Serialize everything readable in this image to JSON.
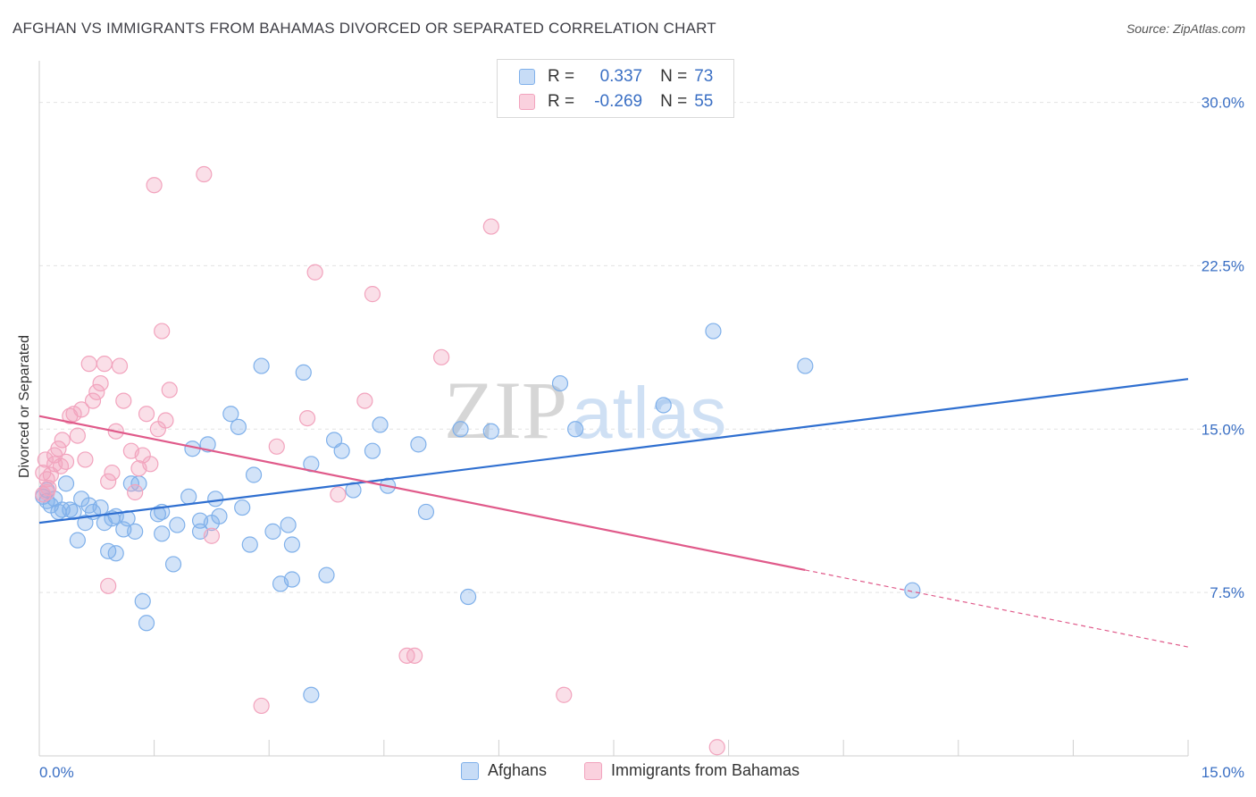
{
  "header": {
    "title": "AFGHAN VS IMMIGRANTS FROM BAHAMAS DIVORCED OR SEPARATED CORRELATION CHART",
    "source": "Source: ZipAtlas.com"
  },
  "watermark": {
    "zip": "ZIP",
    "atlas": "atlas"
  },
  "legend_top": {
    "rows": [
      {
        "r_label": "R =",
        "r_value": "0.337",
        "n_label": "N =",
        "n_value": "73",
        "color": "#7fb0ea"
      },
      {
        "r_label": "R =",
        "r_value": "-0.269",
        "n_label": "N =",
        "n_value": "55",
        "color": "#f2a3bd"
      }
    ]
  },
  "legend_bottom": {
    "items": [
      {
        "label": "Afghans",
        "color": "#7fb0ea"
      },
      {
        "label": "Immigrants from Bahamas",
        "color": "#f2a3bd"
      }
    ]
  },
  "chart_data": {
    "type": "scatter",
    "title": "AFGHAN VS IMMIGRANTS FROM BAHAMAS DIVORCED OR SEPARATED CORRELATION CHART",
    "xlabel": "",
    "ylabel": "Divorced or Separated",
    "xlim": [
      0,
      15
    ],
    "ylim": [
      0,
      31.5
    ],
    "x_tick_labels": [
      {
        "value": 0,
        "label": "0.0%"
      },
      {
        "value": 15,
        "label": "15.0%"
      }
    ],
    "y_tick_labels": [
      {
        "value": 7.5,
        "label": "7.5%"
      },
      {
        "value": 15,
        "label": "15.0%"
      },
      {
        "value": 22.5,
        "label": "22.5%"
      },
      {
        "value": 30,
        "label": "30.0%"
      }
    ],
    "grid": true,
    "series": [
      {
        "name": "Afghans",
        "color": "#7fb0ea",
        "line_color": "#2f6fd0",
        "trend": {
          "x0": 0,
          "y0": 10.7,
          "x1": 15,
          "y1": 17.3,
          "solid_until": 15
        },
        "points": [
          [
            0.1,
            12.2
          ],
          [
            0.1,
            11.7
          ],
          [
            0.2,
            11.8
          ],
          [
            0.25,
            11.2
          ],
          [
            0.3,
            11.3
          ],
          [
            0.35,
            12.5
          ],
          [
            0.4,
            11.3
          ],
          [
            0.45,
            11.2
          ],
          [
            0.55,
            11.8
          ],
          [
            0.6,
            10.7
          ],
          [
            0.65,
            11.5
          ],
          [
            0.7,
            11.2
          ],
          [
            0.8,
            11.4
          ],
          [
            0.85,
            10.7
          ],
          [
            0.9,
            9.4
          ],
          [
            1.0,
            11.0
          ],
          [
            1.0,
            9.3
          ],
          [
            1.1,
            10.4
          ],
          [
            1.15,
            10.9
          ],
          [
            1.2,
            12.5
          ],
          [
            1.3,
            12.5
          ],
          [
            1.35,
            7.1
          ],
          [
            1.4,
            6.1
          ],
          [
            1.6,
            10.2
          ],
          [
            1.8,
            10.6
          ],
          [
            1.95,
            11.9
          ],
          [
            2.0,
            14.1
          ],
          [
            2.1,
            10.8
          ],
          [
            2.2,
            14.3
          ],
          [
            2.3,
            11.8
          ],
          [
            2.35,
            11.0
          ],
          [
            2.5,
            15.7
          ],
          [
            2.6,
            15.1
          ],
          [
            2.75,
            9.7
          ],
          [
            2.8,
            12.9
          ],
          [
            2.9,
            17.9
          ],
          [
            3.05,
            10.3
          ],
          [
            3.15,
            7.9
          ],
          [
            3.25,
            10.6
          ],
          [
            3.3,
            9.7
          ],
          [
            3.45,
            17.6
          ],
          [
            3.55,
            13.4
          ],
          [
            3.75,
            8.3
          ],
          [
            3.85,
            14.5
          ],
          [
            3.95,
            14.0
          ],
          [
            4.1,
            12.2
          ],
          [
            4.35,
            14.0
          ],
          [
            4.45,
            15.2
          ],
          [
            4.55,
            12.4
          ],
          [
            4.95,
            14.3
          ],
          [
            5.05,
            11.2
          ],
          [
            5.5,
            15.0
          ],
          [
            5.6,
            7.3
          ],
          [
            5.9,
            14.9
          ],
          [
            3.3,
            8.1
          ],
          [
            3.55,
            2.8
          ],
          [
            1.75,
            8.8
          ],
          [
            2.1,
            10.3
          ],
          [
            2.25,
            10.7
          ],
          [
            6.8,
            17.1
          ],
          [
            7.0,
            15.0
          ],
          [
            8.15,
            16.1
          ],
          [
            8.8,
            19.5
          ],
          [
            10.0,
            17.9
          ],
          [
            11.4,
            7.6
          ],
          [
            0.15,
            11.5
          ],
          [
            0.05,
            11.9
          ],
          [
            1.55,
            11.1
          ],
          [
            2.65,
            11.4
          ],
          [
            1.6,
            11.2
          ],
          [
            0.95,
            10.9
          ],
          [
            0.5,
            9.9
          ],
          [
            1.25,
            10.3
          ]
        ]
      },
      {
        "name": "Immigrants from Bahamas",
        "color": "#f2a3bd",
        "line_color": "#e05a8a",
        "trend": {
          "x0": 0,
          "y0": 15.6,
          "x1": 15,
          "y1": 5.0,
          "solid_until": 10.0
        },
        "points": [
          [
            0.05,
            13.0
          ],
          [
            0.08,
            13.6
          ],
          [
            0.1,
            12.7
          ],
          [
            0.12,
            12.3
          ],
          [
            0.2,
            13.8
          ],
          [
            0.25,
            14.1
          ],
          [
            0.3,
            14.5
          ],
          [
            0.35,
            13.5
          ],
          [
            0.4,
            15.6
          ],
          [
            0.45,
            15.7
          ],
          [
            0.5,
            14.7
          ],
          [
            0.55,
            15.9
          ],
          [
            0.6,
            13.6
          ],
          [
            0.65,
            18.0
          ],
          [
            0.7,
            16.3
          ],
          [
            0.75,
            16.7
          ],
          [
            0.8,
            17.1
          ],
          [
            0.85,
            18.0
          ],
          [
            0.9,
            12.6
          ],
          [
            0.95,
            13.0
          ],
          [
            1.0,
            14.9
          ],
          [
            1.05,
            17.9
          ],
          [
            1.1,
            16.3
          ],
          [
            1.2,
            14.0
          ],
          [
            1.25,
            12.1
          ],
          [
            1.3,
            13.2
          ],
          [
            1.35,
            13.8
          ],
          [
            1.4,
            15.7
          ],
          [
            1.45,
            13.4
          ],
          [
            1.5,
            26.2
          ],
          [
            1.55,
            15.0
          ],
          [
            1.6,
            19.5
          ],
          [
            1.65,
            15.4
          ],
          [
            1.7,
            16.8
          ],
          [
            2.15,
            26.7
          ],
          [
            2.25,
            10.1
          ],
          [
            2.9,
            2.3
          ],
          [
            3.1,
            14.2
          ],
          [
            3.5,
            15.5
          ],
          [
            3.6,
            22.2
          ],
          [
            3.9,
            12.0
          ],
          [
            4.25,
            16.3
          ],
          [
            4.35,
            21.2
          ],
          [
            4.8,
            4.6
          ],
          [
            4.9,
            4.6
          ],
          [
            5.25,
            18.3
          ],
          [
            5.9,
            24.3
          ],
          [
            6.85,
            2.8
          ],
          [
            8.85,
            0.4
          ],
          [
            0.9,
            7.8
          ],
          [
            0.15,
            12.9
          ],
          [
            0.2,
            13.4
          ],
          [
            0.28,
            13.3
          ],
          [
            0.05,
            12.0
          ],
          [
            0.1,
            12.1
          ]
        ]
      }
    ]
  }
}
